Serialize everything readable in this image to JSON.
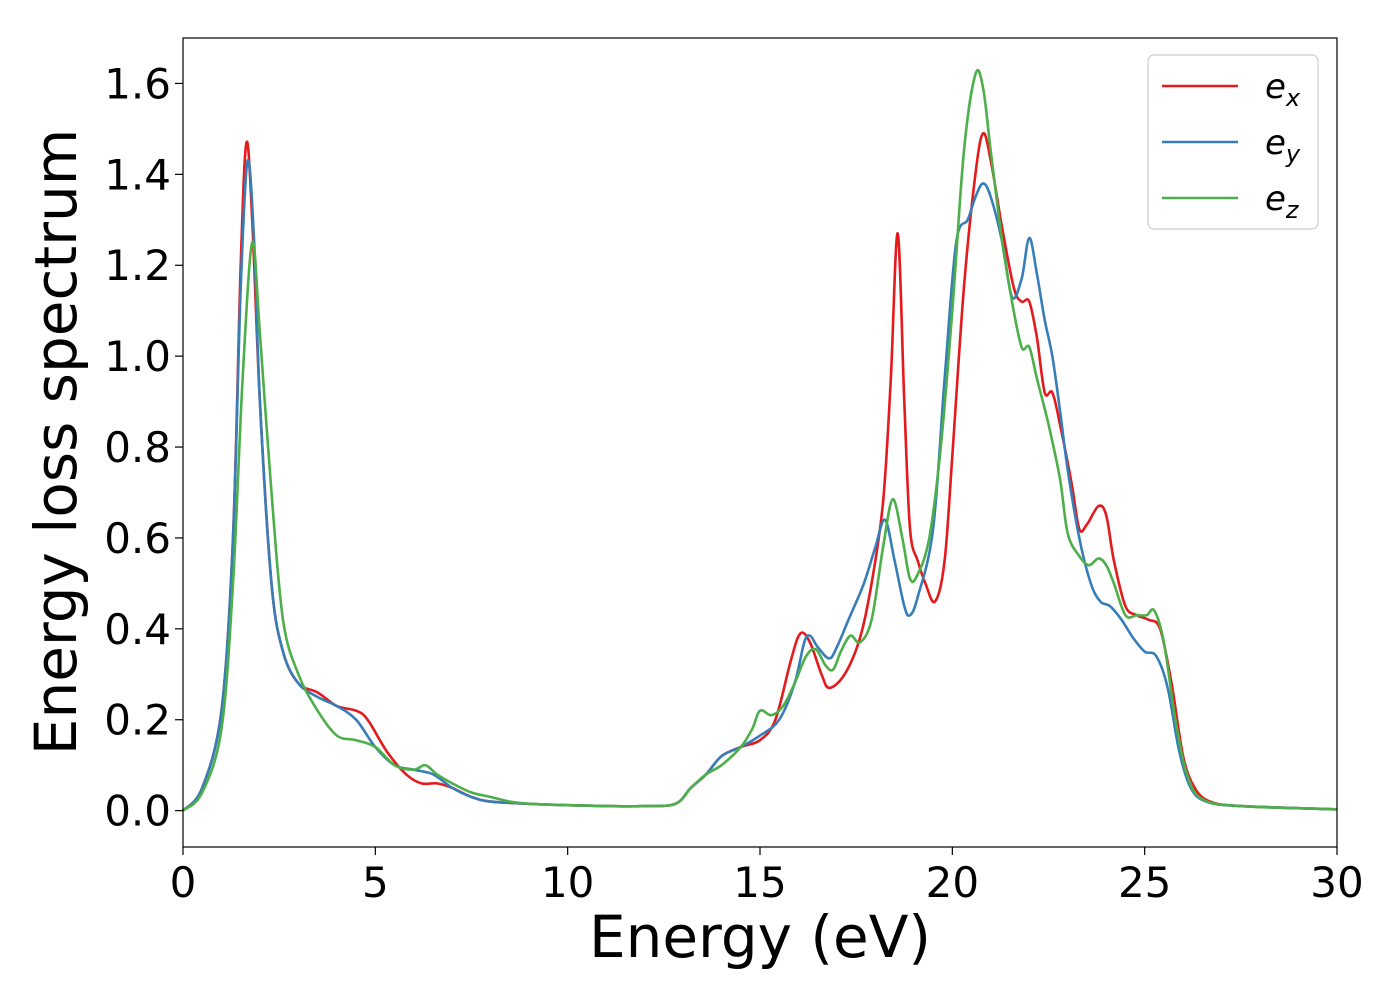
{
  "chart_data": {
    "type": "line",
    "xlabel": "Energy (eV)",
    "ylabel": "Energy loss spectrum",
    "xlim": [
      0,
      30
    ],
    "ylim": [
      -0.08,
      1.7
    ],
    "xticks": [
      0,
      5,
      10,
      15,
      20,
      25,
      30
    ],
    "xtick_labels": [
      "0",
      "5",
      "10",
      "15",
      "20",
      "25",
      "30"
    ],
    "yticks": [
      0.0,
      0.2,
      0.4,
      0.6,
      0.8,
      1.0,
      1.2,
      1.4,
      1.6
    ],
    "ytick_labels": [
      "0.0",
      "0.2",
      "0.4",
      "0.6",
      "0.8",
      "1.0",
      "1.2",
      "1.4",
      "1.6"
    ],
    "grid": false,
    "legend_position": "top-right",
    "series": [
      {
        "name": "e_x",
        "legend_base": "e",
        "legend_sub": "x",
        "color": "#e41a1c",
        "points": [
          [
            0,
            0.0
          ],
          [
            0.5,
            0.05
          ],
          [
            1.0,
            0.22
          ],
          [
            1.3,
            0.6
          ],
          [
            1.5,
            1.2
          ],
          [
            1.65,
            1.47
          ],
          [
            1.8,
            1.3
          ],
          [
            2.0,
            0.9
          ],
          [
            2.3,
            0.5
          ],
          [
            2.6,
            0.35
          ],
          [
            3.0,
            0.28
          ],
          [
            3.5,
            0.26
          ],
          [
            4.0,
            0.23
          ],
          [
            4.5,
            0.22
          ],
          [
            4.8,
            0.2
          ],
          [
            5.3,
            0.13
          ],
          [
            5.8,
            0.08
          ],
          [
            6.2,
            0.06
          ],
          [
            6.6,
            0.06
          ],
          [
            7.0,
            0.05
          ],
          [
            7.5,
            0.03
          ],
          [
            8.0,
            0.02
          ],
          [
            9.0,
            0.015
          ],
          [
            10.0,
            0.012
          ],
          [
            11.0,
            0.01
          ],
          [
            12.0,
            0.01
          ],
          [
            12.8,
            0.015
          ],
          [
            13.2,
            0.05
          ],
          [
            13.6,
            0.08
          ],
          [
            14.0,
            0.12
          ],
          [
            14.5,
            0.14
          ],
          [
            15.0,
            0.155
          ],
          [
            15.4,
            0.2
          ],
          [
            15.8,
            0.33
          ],
          [
            16.05,
            0.39
          ],
          [
            16.3,
            0.37
          ],
          [
            16.6,
            0.3
          ],
          [
            16.8,
            0.27
          ],
          [
            17.2,
            0.3
          ],
          [
            17.6,
            0.38
          ],
          [
            17.9,
            0.5
          ],
          [
            18.2,
            0.68
          ],
          [
            18.4,
            0.95
          ],
          [
            18.58,
            1.27
          ],
          [
            18.75,
            0.9
          ],
          [
            18.9,
            0.62
          ],
          [
            19.1,
            0.55
          ],
          [
            19.3,
            0.5
          ],
          [
            19.55,
            0.46
          ],
          [
            19.8,
            0.55
          ],
          [
            20.0,
            0.78
          ],
          [
            20.3,
            1.15
          ],
          [
            20.6,
            1.4
          ],
          [
            20.8,
            1.49
          ],
          [
            21.0,
            1.43
          ],
          [
            21.3,
            1.28
          ],
          [
            21.6,
            1.15
          ],
          [
            21.8,
            1.12
          ],
          [
            22.0,
            1.12
          ],
          [
            22.2,
            1.04
          ],
          [
            22.4,
            0.92
          ],
          [
            22.6,
            0.92
          ],
          [
            22.8,
            0.85
          ],
          [
            23.1,
            0.72
          ],
          [
            23.3,
            0.62
          ],
          [
            23.5,
            0.63
          ],
          [
            23.8,
            0.67
          ],
          [
            24.0,
            0.65
          ],
          [
            24.2,
            0.55
          ],
          [
            24.5,
            0.45
          ],
          [
            24.8,
            0.43
          ],
          [
            25.1,
            0.42
          ],
          [
            25.4,
            0.4
          ],
          [
            25.7,
            0.28
          ],
          [
            26.0,
            0.12
          ],
          [
            26.3,
            0.05
          ],
          [
            26.7,
            0.02
          ],
          [
            27.5,
            0.01
          ],
          [
            30.0,
            0.003
          ]
        ]
      },
      {
        "name": "e_y",
        "legend_base": "e",
        "legend_sub": "y",
        "color": "#377eb8",
        "points": [
          [
            0,
            0.0
          ],
          [
            0.5,
            0.05
          ],
          [
            1.0,
            0.22
          ],
          [
            1.3,
            0.6
          ],
          [
            1.5,
            1.15
          ],
          [
            1.68,
            1.43
          ],
          [
            1.85,
            1.25
          ],
          [
            2.0,
            0.9
          ],
          [
            2.3,
            0.5
          ],
          [
            2.6,
            0.35
          ],
          [
            3.0,
            0.28
          ],
          [
            3.5,
            0.25
          ],
          [
            4.0,
            0.23
          ],
          [
            4.5,
            0.2
          ],
          [
            5.0,
            0.14
          ],
          [
            5.5,
            0.1
          ],
          [
            6.0,
            0.09
          ],
          [
            6.5,
            0.08
          ],
          [
            7.0,
            0.05
          ],
          [
            7.5,
            0.03
          ],
          [
            8.0,
            0.02
          ],
          [
            9.0,
            0.015
          ],
          [
            10.0,
            0.012
          ],
          [
            11.0,
            0.01
          ],
          [
            12.0,
            0.01
          ],
          [
            12.8,
            0.015
          ],
          [
            13.2,
            0.05
          ],
          [
            13.6,
            0.08
          ],
          [
            14.0,
            0.12
          ],
          [
            14.5,
            0.14
          ],
          [
            15.0,
            0.165
          ],
          [
            15.5,
            0.2
          ],
          [
            15.9,
            0.28
          ],
          [
            16.15,
            0.37
          ],
          [
            16.3,
            0.385
          ],
          [
            16.5,
            0.36
          ],
          [
            16.8,
            0.335
          ],
          [
            17.0,
            0.36
          ],
          [
            17.3,
            0.42
          ],
          [
            17.7,
            0.5
          ],
          [
            18.0,
            0.58
          ],
          [
            18.25,
            0.64
          ],
          [
            18.5,
            0.55
          ],
          [
            18.75,
            0.45
          ],
          [
            18.9,
            0.43
          ],
          [
            19.1,
            0.47
          ],
          [
            19.5,
            0.62
          ],
          [
            19.8,
            0.95
          ],
          [
            20.1,
            1.25
          ],
          [
            20.4,
            1.3
          ],
          [
            20.6,
            1.35
          ],
          [
            20.8,
            1.38
          ],
          [
            21.0,
            1.35
          ],
          [
            21.3,
            1.25
          ],
          [
            21.55,
            1.13
          ],
          [
            21.8,
            1.17
          ],
          [
            22.0,
            1.26
          ],
          [
            22.2,
            1.18
          ],
          [
            22.4,
            1.08
          ],
          [
            22.6,
            1.0
          ],
          [
            22.8,
            0.88
          ],
          [
            23.0,
            0.75
          ],
          [
            23.3,
            0.6
          ],
          [
            23.6,
            0.5
          ],
          [
            23.85,
            0.46
          ],
          [
            24.1,
            0.45
          ],
          [
            24.4,
            0.42
          ],
          [
            24.7,
            0.38
          ],
          [
            25.0,
            0.35
          ],
          [
            25.3,
            0.34
          ],
          [
            25.6,
            0.27
          ],
          [
            25.9,
            0.13
          ],
          [
            26.2,
            0.05
          ],
          [
            26.6,
            0.02
          ],
          [
            27.5,
            0.01
          ],
          [
            30.0,
            0.003
          ]
        ]
      },
      {
        "name": "e_z",
        "legend_base": "e",
        "legend_sub": "z",
        "color": "#4daf4a",
        "points": [
          [
            0,
            0.0
          ],
          [
            0.5,
            0.04
          ],
          [
            1.0,
            0.18
          ],
          [
            1.3,
            0.5
          ],
          [
            1.55,
            0.95
          ],
          [
            1.8,
            1.25
          ],
          [
            2.0,
            1.05
          ],
          [
            2.3,
            0.7
          ],
          [
            2.6,
            0.42
          ],
          [
            3.0,
            0.3
          ],
          [
            3.5,
            0.22
          ],
          [
            4.0,
            0.165
          ],
          [
            4.5,
            0.155
          ],
          [
            5.0,
            0.14
          ],
          [
            5.5,
            0.1
          ],
          [
            6.0,
            0.09
          ],
          [
            6.3,
            0.1
          ],
          [
            6.6,
            0.08
          ],
          [
            7.0,
            0.06
          ],
          [
            7.5,
            0.04
          ],
          [
            8.0,
            0.03
          ],
          [
            8.5,
            0.02
          ],
          [
            9.0,
            0.015
          ],
          [
            10.0,
            0.012
          ],
          [
            11.0,
            0.01
          ],
          [
            12.0,
            0.01
          ],
          [
            12.8,
            0.015
          ],
          [
            13.2,
            0.05
          ],
          [
            13.6,
            0.08
          ],
          [
            14.0,
            0.1
          ],
          [
            14.5,
            0.14
          ],
          [
            14.8,
            0.18
          ],
          [
            15.0,
            0.22
          ],
          [
            15.3,
            0.21
          ],
          [
            15.6,
            0.23
          ],
          [
            15.9,
            0.28
          ],
          [
            16.2,
            0.34
          ],
          [
            16.45,
            0.355
          ],
          [
            16.7,
            0.32
          ],
          [
            16.9,
            0.31
          ],
          [
            17.1,
            0.35
          ],
          [
            17.35,
            0.385
          ],
          [
            17.6,
            0.37
          ],
          [
            17.9,
            0.42
          ],
          [
            18.2,
            0.58
          ],
          [
            18.45,
            0.685
          ],
          [
            18.7,
            0.6
          ],
          [
            18.9,
            0.51
          ],
          [
            19.1,
            0.52
          ],
          [
            19.4,
            0.6
          ],
          [
            19.7,
            0.8
          ],
          [
            20.0,
            1.1
          ],
          [
            20.3,
            1.45
          ],
          [
            20.6,
            1.62
          ],
          [
            20.8,
            1.59
          ],
          [
            21.0,
            1.45
          ],
          [
            21.3,
            1.25
          ],
          [
            21.55,
            1.12
          ],
          [
            21.8,
            1.02
          ],
          [
            22.0,
            1.02
          ],
          [
            22.2,
            0.95
          ],
          [
            22.5,
            0.85
          ],
          [
            22.8,
            0.73
          ],
          [
            23.0,
            0.61
          ],
          [
            23.3,
            0.56
          ],
          [
            23.55,
            0.54
          ],
          [
            23.8,
            0.555
          ],
          [
            24.0,
            0.54
          ],
          [
            24.2,
            0.5
          ],
          [
            24.5,
            0.43
          ],
          [
            24.8,
            0.43
          ],
          [
            25.05,
            0.43
          ],
          [
            25.25,
            0.44
          ],
          [
            25.5,
            0.37
          ],
          [
            25.8,
            0.2
          ],
          [
            26.1,
            0.08
          ],
          [
            26.5,
            0.025
          ],
          [
            27.5,
            0.01
          ],
          [
            30.0,
            0.003
          ]
        ]
      }
    ]
  }
}
